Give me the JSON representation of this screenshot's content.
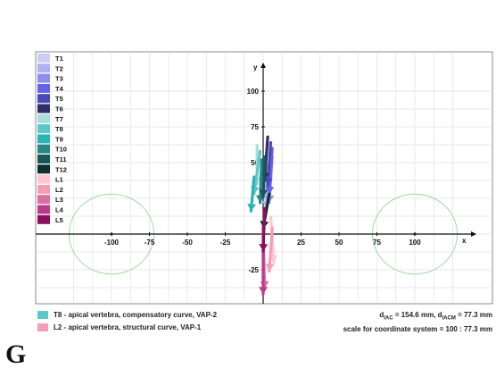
{
  "chart_data": {
    "type": "scatter",
    "xlabel": "x",
    "ylabel": "y",
    "xlim": [
      -126,
      126
    ],
    "ylim": [
      -53,
      88
    ],
    "x_ticks": [
      -100,
      -75,
      -50,
      -25,
      25,
      50,
      75,
      100
    ],
    "y_ticks": [
      100,
      75,
      50,
      -25
    ],
    "x_tick_labels": [
      "-100",
      "-75",
      "-50",
      "-25",
      "25",
      "50",
      "75",
      "100"
    ],
    "y_tick_labels": [
      "100",
      "75",
      "50",
      "-25"
    ],
    "grid": true,
    "legend_position": "left",
    "legend": [
      {
        "name": "T1",
        "color": "#ccccf6"
      },
      {
        "name": "T2",
        "color": "#b0b0f2"
      },
      {
        "name": "T3",
        "color": "#8e8ef0"
      },
      {
        "name": "T4",
        "color": "#6464ea"
      },
      {
        "name": "T5",
        "color": "#4a4ab6"
      },
      {
        "name": "T6",
        "color": "#2e2e6a"
      },
      {
        "name": "T7",
        "color": "#a8dede"
      },
      {
        "name": "T8",
        "color": "#5cc8c8"
      },
      {
        "name": "T9",
        "color": "#2ab5b5"
      },
      {
        "name": "T10",
        "color": "#268686"
      },
      {
        "name": "T11",
        "color": "#1b5656"
      },
      {
        "name": "T12",
        "color": "#0f2e2e"
      },
      {
        "name": "L1",
        "color": "#ffc6d0"
      },
      {
        "name": "L2",
        "color": "#f79cb6"
      },
      {
        "name": "L3",
        "color": "#d870a0"
      },
      {
        "name": "L4",
        "color": "#bc3a8c"
      },
      {
        "name": "L5",
        "color": "#8e0e5e"
      }
    ],
    "vectors": [
      {
        "level": "T1",
        "x0": 2,
        "y0": 22,
        "x1": 1,
        "y1": 44
      },
      {
        "level": "T2",
        "x0": 2,
        "y0": 18,
        "x1": 3,
        "y1": 48
      },
      {
        "level": "T3",
        "x0": 4,
        "y0": 22,
        "x1": 6,
        "y1": 54
      },
      {
        "level": "T4",
        "x0": 4,
        "y0": 28,
        "x1": 6,
        "y1": 60
      },
      {
        "level": "T5",
        "x0": 3,
        "y0": 34,
        "x1": 5,
        "y1": 64
      },
      {
        "level": "T6",
        "x0": 1,
        "y0": 38,
        "x1": 3,
        "y1": 68
      },
      {
        "level": "T7",
        "x0": -4,
        "y0": 35,
        "x1": -4,
        "y1": 62
      },
      {
        "level": "T8",
        "x0": -6,
        "y0": 28,
        "x1": -2,
        "y1": 58
      },
      {
        "level": "T9",
        "x0": -8,
        "y0": 16,
        "x1": -6,
        "y1": 40
      },
      {
        "level": "T10",
        "x0": -2,
        "y0": 22,
        "x1": -1,
        "y1": 52
      },
      {
        "level": "T11",
        "x0": 0,
        "y0": 26,
        "x1": 1,
        "y1": 54
      },
      {
        "level": "T12",
        "x0": 0,
        "y0": 4,
        "x1": 4,
        "y1": 28
      },
      {
        "level": "L1",
        "x0": 7,
        "y0": -20,
        "x1": 5,
        "y1": 12
      },
      {
        "level": "L2",
        "x0": 4,
        "y0": -26,
        "x1": 6,
        "y1": 4
      },
      {
        "level": "L3",
        "x0": 1,
        "y0": -38,
        "x1": 0,
        "y1": 0
      },
      {
        "level": "L4",
        "x0": 0,
        "y0": -42,
        "x1": 0,
        "y1": 4
      },
      {
        "level": "L5",
        "x0": 0,
        "y0": -12,
        "x1": 1,
        "y1": 18
      }
    ],
    "circles": [
      {
        "cx": -100,
        "cy": 0,
        "r": 28
      },
      {
        "cx": 100,
        "cy": 0,
        "r": 28
      }
    ]
  },
  "footer": {
    "legend_items": [
      {
        "text": "T8 - apical vertebra, compensatory curve, VAP-2",
        "color": "#5cc8c8"
      },
      {
        "text": "L2 - apical vertebra, structural curve, VAP-1",
        "color": "#f79cb6"
      }
    ],
    "d_iac_prefix": "d",
    "d_iac_sub": "IAC",
    "d_iac_value": " = 154.6 mm,  ",
    "d_iacm_prefix": "d",
    "d_iacm_sub": "IACM",
    "d_iacm_value": " = 77.3 mm",
    "scale_text": "scale for coordinate system = 100 : 77.3 mm"
  },
  "panel_label": "G"
}
